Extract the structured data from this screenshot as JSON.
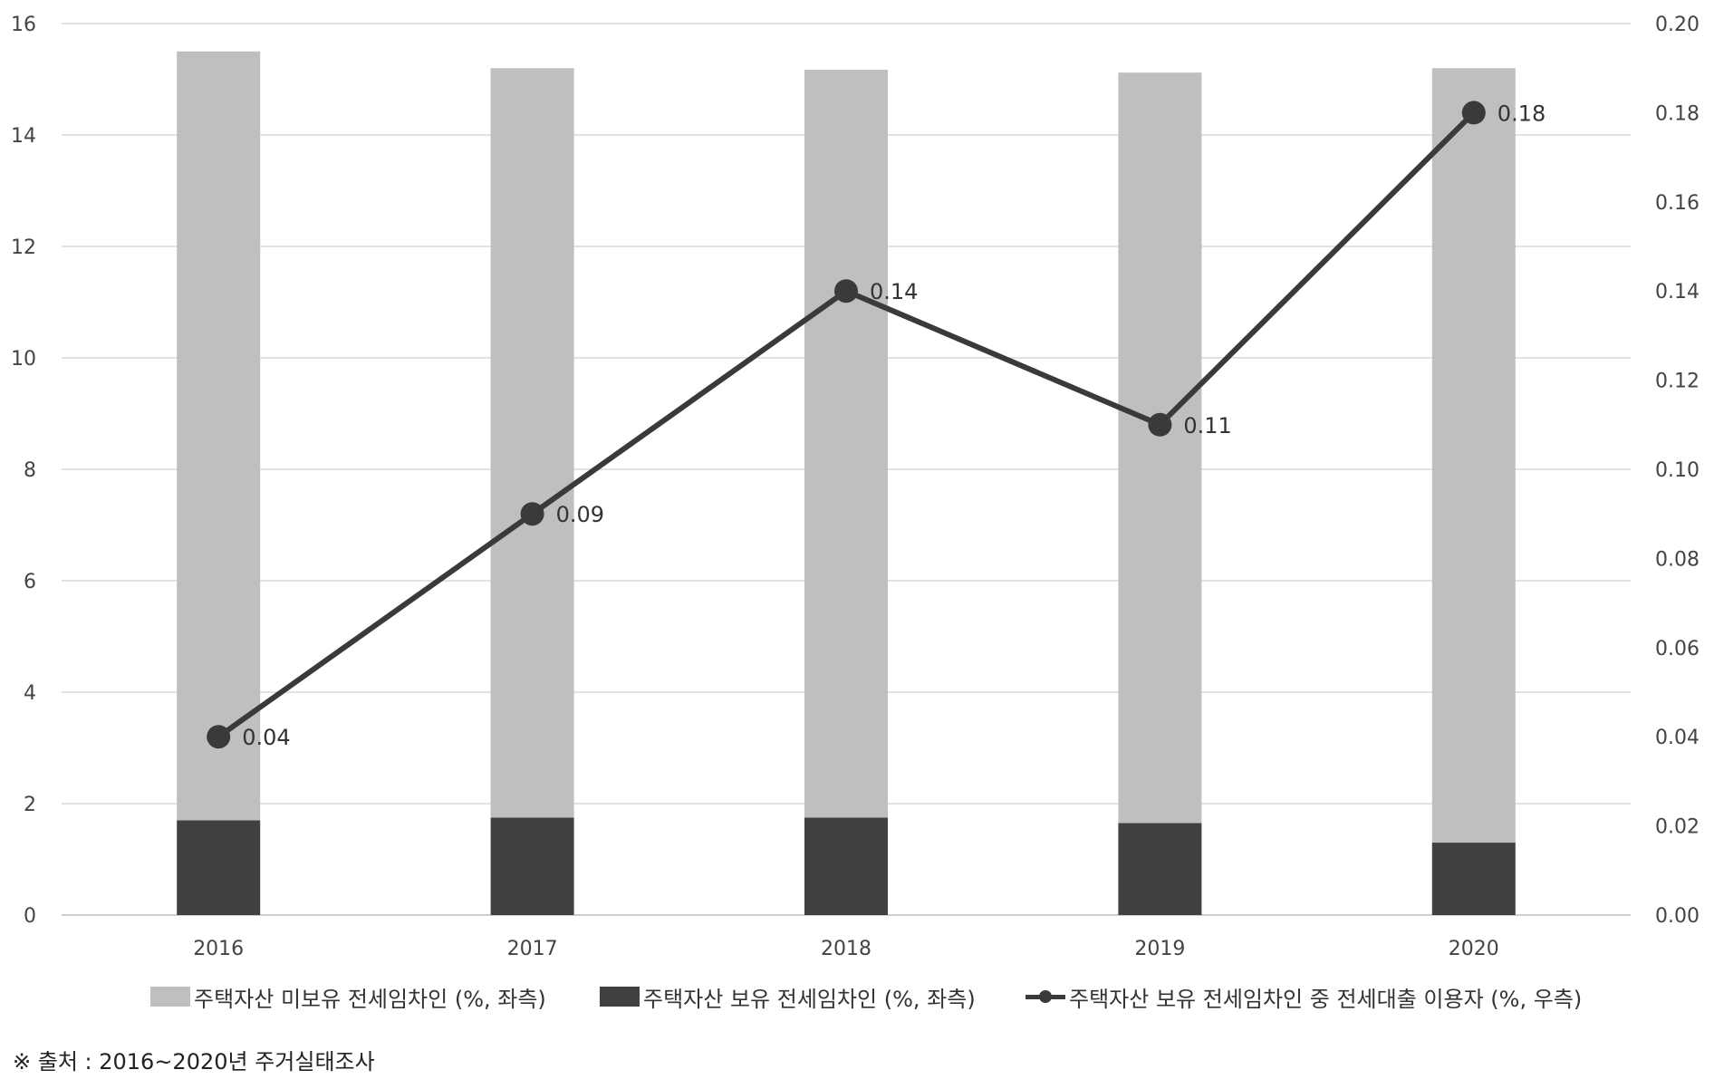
{
  "chart_data": {
    "type": "bar",
    "stacked": true,
    "categories": [
      "2016",
      "2017",
      "2018",
      "2019",
      "2020"
    ],
    "series": [
      {
        "name": "주택자산 보유 전세임차인 (%, 좌측)",
        "axis": "left",
        "kind": "bar",
        "color": "#404040",
        "values": [
          1.7,
          1.75,
          1.75,
          1.65,
          1.3
        ]
      },
      {
        "name": "주택자산 미보유 전세임차인 (%, 좌측)",
        "axis": "left",
        "kind": "bar",
        "color": "#bfbfbf",
        "values": [
          13.8,
          13.45,
          13.42,
          13.47,
          13.9
        ]
      },
      {
        "name": "주택자산 보유 전세임차인 중 전세대출 이용자 (%, 우측)",
        "axis": "right",
        "kind": "line",
        "color": "#3a3a3a",
        "values": [
          0.04,
          0.09,
          0.14,
          0.11,
          0.18
        ],
        "labels": [
          "0.04",
          "0.09",
          "0.14",
          "0.11",
          "0.18"
        ]
      }
    ],
    "y_left": {
      "min": 0,
      "max": 16,
      "ticks": [
        "0",
        "2",
        "4",
        "6",
        "8",
        "10",
        "12",
        "14",
        "16"
      ]
    },
    "y_right": {
      "min": 0,
      "max": 0.2,
      "ticks": [
        "0.00",
        "0.02",
        "0.04",
        "0.06",
        "0.08",
        "0.10",
        "0.12",
        "0.14",
        "0.16",
        "0.18",
        "0.20"
      ]
    },
    "grid": true,
    "legend_position": "bottom"
  },
  "legend": {
    "items": [
      {
        "label": "주택자산 미보유 전세임차인 (%, 좌측)",
        "type": "bar",
        "color": "#bfbfbf"
      },
      {
        "label": "주택자산 보유 전세임차인 (%, 좌측)",
        "type": "bar",
        "color": "#404040"
      },
      {
        "label": "주택자산 보유 전세임차인 중 전세대출 이용자 (%, 우측)",
        "type": "line",
        "color": "#3a3a3a"
      }
    ]
  },
  "source": "※ 출처 : 2016~2020년 주거실태조사"
}
